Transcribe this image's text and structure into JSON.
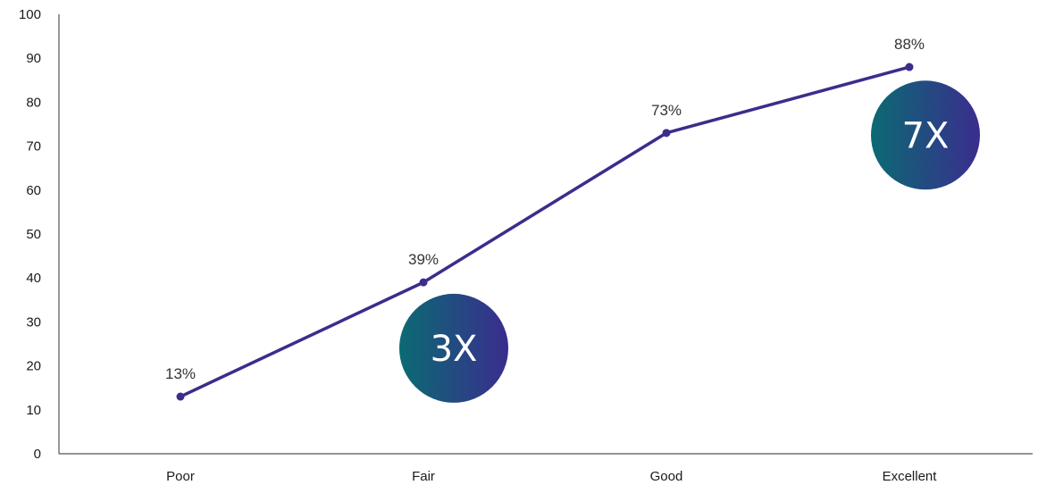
{
  "chart_data": {
    "type": "line",
    "categories": [
      "Poor",
      "Fair",
      "Good",
      "Excellent"
    ],
    "series": [
      {
        "values": [
          13,
          39,
          73,
          88
        ]
      }
    ],
    "data_labels": [
      "13%",
      "39%",
      "73%",
      "88%"
    ],
    "ylim": [
      0,
      100
    ],
    "yticks": [
      "0",
      "10",
      "20",
      "30",
      "40",
      "50",
      "60",
      "70",
      "80",
      "90",
      "100"
    ],
    "xlabel": "",
    "ylabel": "",
    "grid": false,
    "line_color": "#3b2d8c",
    "annotations": [
      {
        "text": "3X",
        "category": "Fair",
        "y": 24
      },
      {
        "text": "7X",
        "category": "Excellent",
        "y": 72.5
      }
    ],
    "badge_gradient": [
      "#0b6a73",
      "#3a2d8e"
    ]
  }
}
